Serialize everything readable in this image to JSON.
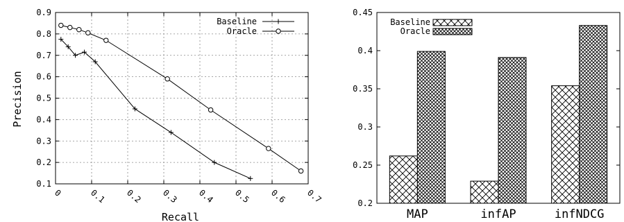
{
  "chart_data": [
    {
      "type": "line",
      "xlabel": "Recall",
      "ylabel": "Precision",
      "xlim": [
        0,
        0.7
      ],
      "ylim": [
        0.1,
        0.9
      ],
      "xticks": [
        "0",
        "0.1",
        "0.2",
        "0.3",
        "0.4",
        "0.5",
        "0.6",
        "0.7"
      ],
      "yticks": [
        "0.1",
        "0.2",
        "0.3",
        "0.4",
        "0.5",
        "0.6",
        "0.7",
        "0.8",
        "0.9"
      ],
      "grid": true,
      "legend_position": "top-right",
      "series": [
        {
          "name": "Baseline",
          "marker": "plus",
          "points": [
            [
              0.015,
              0.775
            ],
            [
              0.035,
              0.74
            ],
            [
              0.055,
              0.7
            ],
            [
              0.08,
              0.715
            ],
            [
              0.11,
              0.67
            ],
            [
              0.22,
              0.45
            ],
            [
              0.32,
              0.34
            ],
            [
              0.44,
              0.2
            ],
            [
              0.54,
              0.125
            ]
          ]
        },
        {
          "name": "Oracle",
          "marker": "circle",
          "points": [
            [
              0.015,
              0.84
            ],
            [
              0.04,
              0.83
            ],
            [
              0.065,
              0.82
            ],
            [
              0.09,
              0.805
            ],
            [
              0.14,
              0.77
            ],
            [
              0.31,
              0.59
            ],
            [
              0.43,
              0.445
            ],
            [
              0.59,
              0.265
            ],
            [
              0.68,
              0.16
            ]
          ]
        }
      ]
    },
    {
      "type": "bar",
      "categories": [
        "MAP",
        "infAP",
        "infNDCG"
      ],
      "ylim": [
        0.2,
        0.45
      ],
      "yticks": [
        "0.2",
        "0.25",
        "0.3",
        "0.35",
        "0.4",
        "0.45"
      ],
      "grid": false,
      "legend_position": "top-left",
      "series": [
        {
          "name": "Baseline",
          "pattern": "crosshatch-light",
          "values": [
            0.262,
            0.229,
            0.354
          ]
        },
        {
          "name": "Oracle",
          "pattern": "crosshatch-dense",
          "values": [
            0.399,
            0.391,
            0.433
          ]
        }
      ]
    }
  ]
}
